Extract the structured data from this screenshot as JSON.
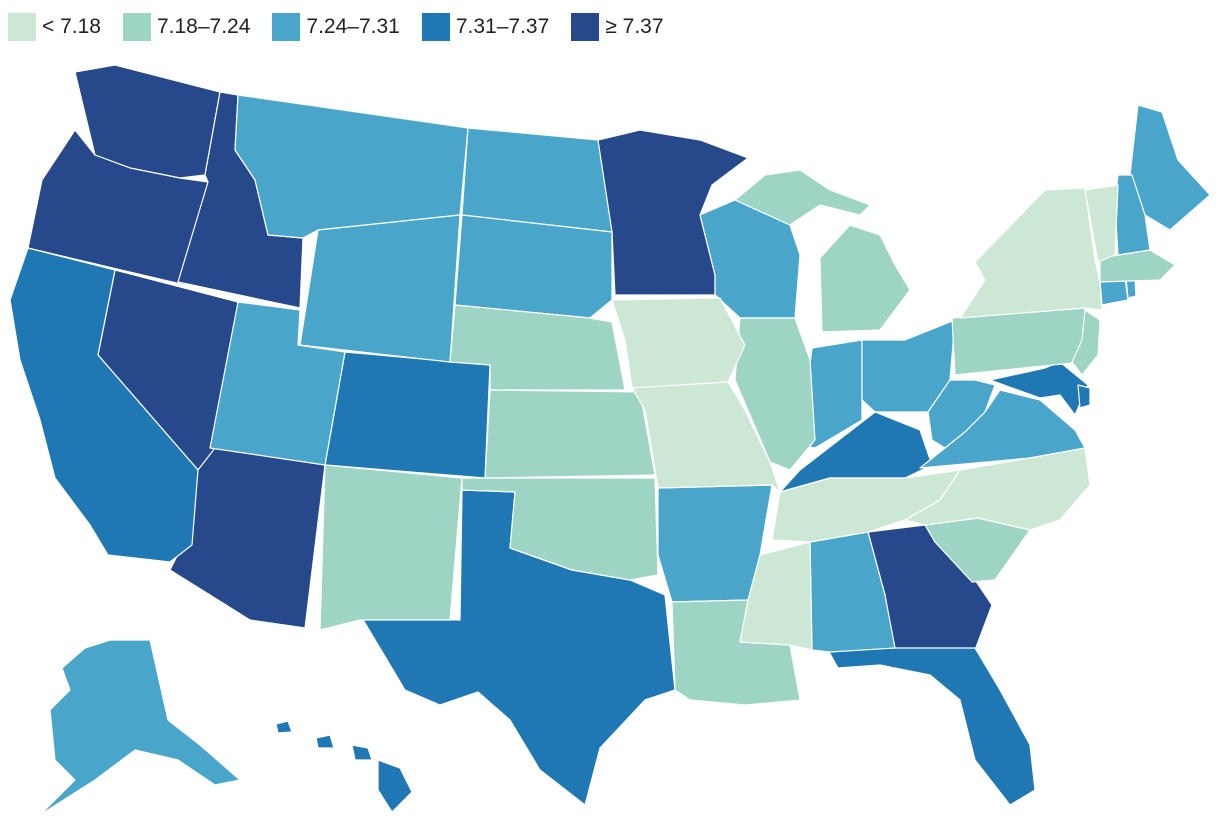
{
  "legend": {
    "bins": [
      {
        "label": "< 7.18",
        "color": "#cce8d4"
      },
      {
        "label": "7.18–7.24",
        "color": "#9dd4c3"
      },
      {
        "label": "7.24–7.31",
        "color": "#4aa5cb"
      },
      {
        "label": "7.31–7.37",
        "color": "#1f78b4"
      },
      {
        "label": "≥ 7.37",
        "color": "#25498a"
      }
    ]
  },
  "chart_data": {
    "type": "choropleth",
    "bins": [
      "< 7.18",
      "7.18–7.24",
      "7.24–7.31",
      "7.31–7.37",
      "≥ 7.37"
    ],
    "states": {
      "WA": 4,
      "OR": 4,
      "ID": 4,
      "NV": 4,
      "AZ": 4,
      "MN": 4,
      "GA": 4,
      "CA": 3,
      "CO": 3,
      "TX": 3,
      "KY": 3,
      "FL": 3,
      "MD": 3,
      "DE": 3,
      "HI": 3,
      "MT": 2,
      "WY": 2,
      "UT": 2,
      "ND": 2,
      "SD": 2,
      "WI": 2,
      "IN": 2,
      "OH": 2,
      "WV": 2,
      "VA": 2,
      "AR": 2,
      "AL": 2,
      "ME": 2,
      "NH": 2,
      "CT": 2,
      "RI": 2,
      "AK": 2,
      "NE": 1,
      "KS": 1,
      "OK": 1,
      "NM": 1,
      "IL": 1,
      "MI": 1,
      "PA": 1,
      "NJ": 1,
      "SC": 1,
      "LA": 1,
      "MA": 1,
      "IA": 0,
      "MO": 0,
      "TN": 0,
      "MS": 0,
      "NC": 0,
      "NY": 0,
      "VT": 0
    }
  }
}
